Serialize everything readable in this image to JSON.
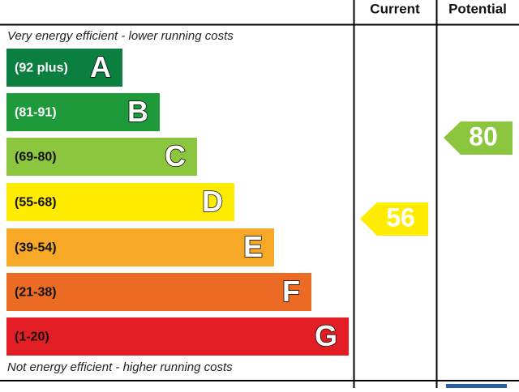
{
  "header": {
    "current": "Current",
    "potential": "Potential"
  },
  "top_note": "Very energy efficient - lower running costs",
  "bottom_note": "Not energy efficient - higher running costs",
  "bands": [
    {
      "range": "(92 plus)",
      "letter": "A",
      "color": "#0b7f3f"
    },
    {
      "range": "(81-91)",
      "letter": "B",
      "color": "#1e9a3b"
    },
    {
      "range": "(69-80)",
      "letter": "C",
      "color": "#8cc63e"
    },
    {
      "range": "(55-68)",
      "letter": "D",
      "color": "#ffec00"
    },
    {
      "range": "(39-54)",
      "letter": "E",
      "color": "#f6a826"
    },
    {
      "range": "(21-38)",
      "letter": "F",
      "color": "#ec6b24"
    },
    {
      "range": "(1-20)",
      "letter": "G",
      "color": "#e31d24"
    }
  ],
  "current": {
    "value": "56",
    "color": "#ffec00"
  },
  "potential": {
    "value": "80",
    "color": "#8cc63e"
  }
}
